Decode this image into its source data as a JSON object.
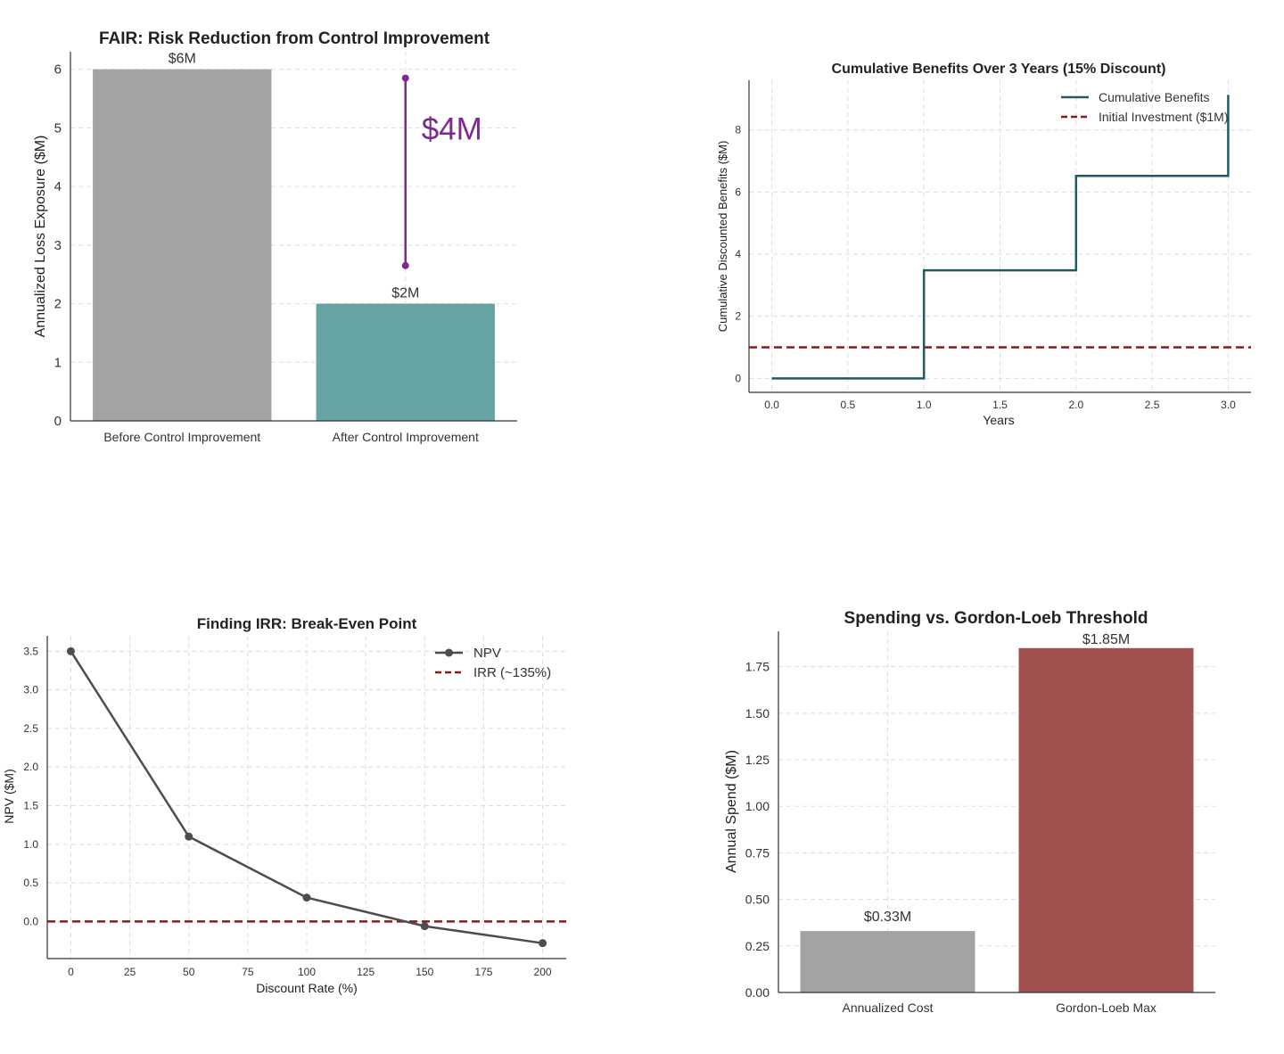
{
  "chart_data": [
    {
      "type": "bar",
      "title": "FAIR: Risk Reduction from Control Improvement",
      "ylabel": "Annualized Loss Exposure ($M)",
      "xlabel": "",
      "categories": [
        "Before Control Improvement",
        "After Control Improvement"
      ],
      "values": [
        6,
        2
      ],
      "data_labels": [
        "$6M",
        "$2M"
      ],
      "colors": [
        "#a3a3a3",
        "#66a3a3"
      ],
      "ylim": [
        0,
        6.3
      ],
      "yticks": [
        0,
        1,
        2,
        3,
        4,
        5,
        6
      ],
      "annotation": {
        "text": "$4M",
        "y_top": 5.85,
        "y_bottom": 2.65,
        "color": "#7d2a8f"
      },
      "grid": true
    },
    {
      "type": "line",
      "title": "Cumulative Benefits Over 3 Years (15% Discount)",
      "xlabel": "Years",
      "ylabel": "Cumulative Discounted Benefits ($M)",
      "xlim": [
        -0.15,
        3.15
      ],
      "ylim": [
        -0.45,
        9.6
      ],
      "xticks": [
        0.0,
        0.5,
        1.0,
        1.5,
        2.0,
        2.5,
        3.0
      ],
      "xtick_labels": [
        "0.0",
        "0.5",
        "1.0",
        "1.5",
        "2.0",
        "2.5",
        "3.0"
      ],
      "yticks": [
        0,
        2,
        4,
        6,
        8
      ],
      "series": [
        {
          "name": "Cumulative Benefits",
          "style": "step",
          "color": "#215a66",
          "x": [
            0,
            1,
            2,
            3
          ],
          "y": [
            0,
            3.48,
            6.52,
            9.13
          ]
        },
        {
          "name": "Initial Investment ($1M)",
          "style": "hline-dashed",
          "color": "#8b1a1a",
          "y": 1
        }
      ],
      "legend": "top-right",
      "grid": true
    },
    {
      "type": "line",
      "title": "Finding IRR: Break-Even Point",
      "xlabel": "Discount Rate (%)",
      "ylabel": "NPV ($M)",
      "xlim": [
        -10,
        210
      ],
      "ylim": [
        -0.48,
        3.7
      ],
      "xticks": [
        0,
        25,
        50,
        75,
        100,
        125,
        150,
        175,
        200
      ],
      "xtick_labels": [
        "0",
        "25",
        "50",
        "75",
        "100",
        "125",
        "150",
        "175",
        "200"
      ],
      "yticks": [
        0.0,
        0.5,
        1.0,
        1.5,
        2.0,
        2.5,
        3.0,
        3.5
      ],
      "ytick_labels": [
        "0.0",
        "0.5",
        "1.0",
        "1.5",
        "2.0",
        "2.5",
        "3.0",
        "3.5"
      ],
      "series": [
        {
          "name": "NPV",
          "style": "line-marker",
          "color": "#4d4d4d",
          "x": [
            0,
            50,
            100,
            150,
            200
          ],
          "y": [
            3.5,
            1.1,
            0.31,
            -0.06,
            -0.28
          ]
        },
        {
          "name": "IRR (~135%)",
          "style": "hline-dashed",
          "color": "#8b1a1a",
          "y": 0
        }
      ],
      "legend": "top-right",
      "grid": true
    },
    {
      "type": "bar",
      "title": "Spending vs. Gordon-Loeb Threshold",
      "ylabel": "Annual Spend ($M)",
      "xlabel": "",
      "categories": [
        "Annualized Cost",
        "Gordon-Loeb Max"
      ],
      "values": [
        0.33,
        1.85
      ],
      "data_labels": [
        "$0.33M",
        "$1.85M"
      ],
      "colors": [
        "#a3a3a3",
        "#a0504e"
      ],
      "ylim": [
        0,
        1.94
      ],
      "yticks": [
        0.0,
        0.25,
        0.5,
        0.75,
        1.0,
        1.25,
        1.5,
        1.75
      ],
      "ytick_labels": [
        "0.00",
        "0.25",
        "0.50",
        "0.75",
        "1.00",
        "1.25",
        "1.50",
        "1.75"
      ],
      "grid": true
    }
  ]
}
